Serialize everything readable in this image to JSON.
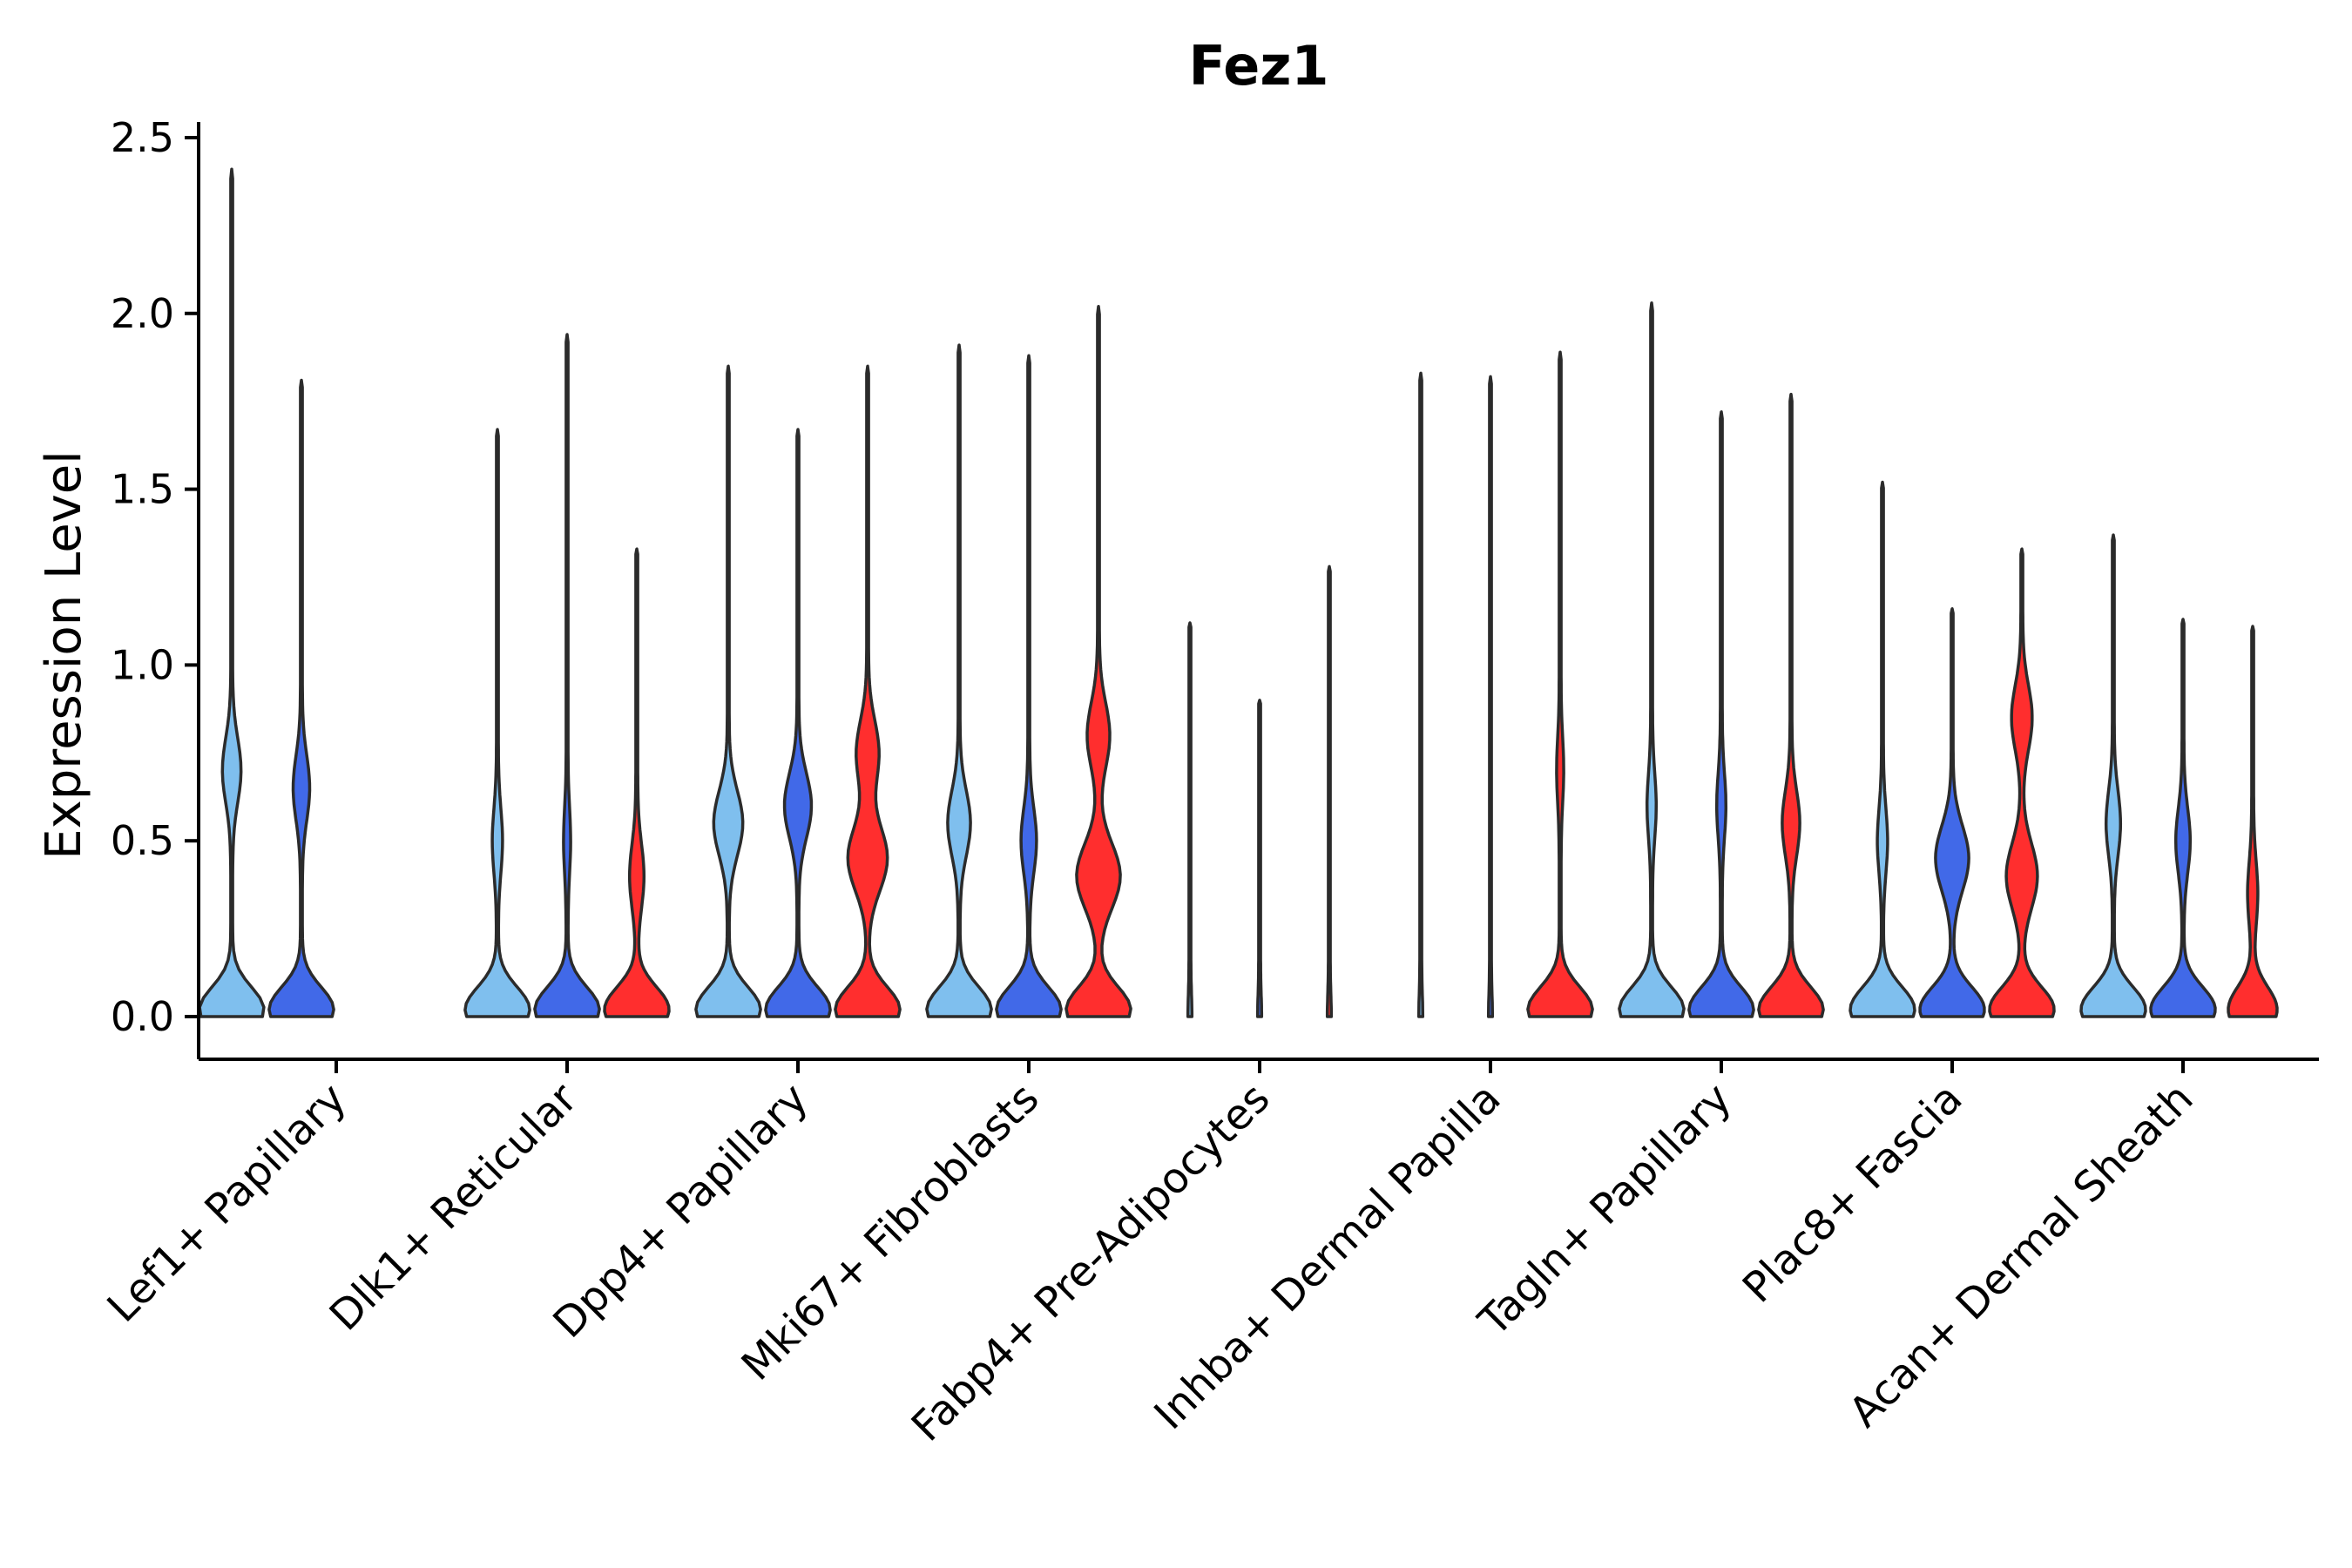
{
  "chart_data": {
    "type": "violin",
    "title": "Fez1",
    "xlabel": "",
    "ylabel": "Expression Level",
    "ylim": [
      0,
      2.5
    ],
    "yticks": [
      0.0,
      0.5,
      1.0,
      1.5,
      2.0,
      2.5
    ],
    "ytick_labels": [
      "0.0",
      "0.5",
      "1.0",
      "1.5",
      "2.0",
      "2.5"
    ],
    "grid": false,
    "legend": "none",
    "series_colors": [
      "#7fbfee",
      "#4169e8",
      "#ff2e2e"
    ],
    "categories": [
      "Lef1+ Papillary",
      "Dlk1+ Reticular",
      "Dpp4+ Papillary",
      "Mki67+ Fibroblasts",
      "Fabp4+ Pre-Adipocytes",
      "Inhba+ Dermal Papilla",
      "Tagln+ Papillary",
      "Plac8+ Fascia",
      "Acan+ Dermal Sheath"
    ],
    "violins": [
      {
        "category": 0,
        "series": 0,
        "max": 2.41,
        "peaks": [
          [
            0.02,
            0.6
          ],
          [
            0.7,
            0.16
          ]
        ]
      },
      {
        "category": 0,
        "series": 1,
        "max": 1.81,
        "peaks": [
          [
            0.02,
            0.6
          ],
          [
            0.65,
            0.14
          ]
        ]
      },
      {
        "category": 1,
        "series": 0,
        "max": 1.67,
        "peaks": [
          [
            0.02,
            0.6
          ],
          [
            0.5,
            0.08
          ]
        ]
      },
      {
        "category": 1,
        "series": 1,
        "max": 1.94,
        "peaks": [
          [
            0.02,
            0.6
          ],
          [
            0.5,
            0.05
          ]
        ]
      },
      {
        "category": 1,
        "series": 2,
        "max": 1.33,
        "peaks": [
          [
            0.02,
            0.6
          ],
          [
            0.4,
            0.12
          ]
        ]
      },
      {
        "category": 2,
        "series": 0,
        "max": 1.85,
        "peaks": [
          [
            0.02,
            0.6
          ],
          [
            0.55,
            0.26
          ]
        ]
      },
      {
        "category": 2,
        "series": 1,
        "max": 1.67,
        "peaks": [
          [
            0.02,
            0.6
          ],
          [
            0.6,
            0.24
          ]
        ]
      },
      {
        "category": 2,
        "series": 2,
        "max": 1.85,
        "peaks": [
          [
            0.02,
            0.6
          ],
          [
            0.45,
            0.36
          ],
          [
            0.75,
            0.2
          ]
        ]
      },
      {
        "category": 3,
        "series": 0,
        "max": 1.91,
        "peaks": [
          [
            0.02,
            0.6
          ],
          [
            0.55,
            0.2
          ]
        ]
      },
      {
        "category": 3,
        "series": 1,
        "max": 1.88,
        "peaks": [
          [
            0.02,
            0.6
          ],
          [
            0.5,
            0.13
          ]
        ]
      },
      {
        "category": 3,
        "series": 2,
        "max": 2.02,
        "peaks": [
          [
            0.02,
            0.6
          ],
          [
            0.4,
            0.4
          ],
          [
            0.8,
            0.2
          ]
        ]
      },
      {
        "category": 4,
        "series": 0,
        "max": 1.12,
        "peaks": [
          [
            0.0,
            0.02
          ]
        ]
      },
      {
        "category": 4,
        "series": 1,
        "max": 0.9,
        "peaks": [
          [
            0.0,
            0.02
          ]
        ]
      },
      {
        "category": 4,
        "series": 2,
        "max": 1.28,
        "peaks": [
          [
            0.0,
            0.02
          ]
        ]
      },
      {
        "category": 5,
        "series": 0,
        "max": 1.83,
        "peaks": [
          [
            0.0,
            0.02
          ]
        ]
      },
      {
        "category": 5,
        "series": 1,
        "max": 1.82,
        "peaks": [
          [
            0.0,
            0.02
          ]
        ]
      },
      {
        "category": 5,
        "series": 2,
        "max": 1.89,
        "peaks": [
          [
            0.02,
            0.6
          ],
          [
            0.7,
            0.05
          ]
        ]
      },
      {
        "category": 6,
        "series": 0,
        "max": 2.03,
        "peaks": [
          [
            0.02,
            0.6
          ],
          [
            0.6,
            0.07
          ]
        ]
      },
      {
        "category": 6,
        "series": 1,
        "max": 1.72,
        "peaks": [
          [
            0.02,
            0.6
          ],
          [
            0.6,
            0.07
          ]
        ]
      },
      {
        "category": 6,
        "series": 2,
        "max": 1.77,
        "peaks": [
          [
            0.02,
            0.6
          ],
          [
            0.55,
            0.15
          ]
        ]
      },
      {
        "category": 7,
        "series": 0,
        "max": 1.52,
        "peaks": [
          [
            0.02,
            0.6
          ],
          [
            0.5,
            0.08
          ]
        ]
      },
      {
        "category": 7,
        "series": 1,
        "max": 1.16,
        "peaks": [
          [
            0.02,
            0.6
          ],
          [
            0.45,
            0.3
          ]
        ]
      },
      {
        "category": 7,
        "series": 2,
        "max": 1.33,
        "peaks": [
          [
            0.02,
            0.6
          ],
          [
            0.4,
            0.28
          ],
          [
            0.85,
            0.18
          ]
        ]
      },
      {
        "category": 8,
        "series": 0,
        "max": 1.37,
        "peaks": [
          [
            0.02,
            0.6
          ],
          [
            0.55,
            0.12
          ]
        ]
      },
      {
        "category": 8,
        "series": 1,
        "max": 1.13,
        "peaks": [
          [
            0.02,
            0.6
          ],
          [
            0.5,
            0.12
          ]
        ]
      },
      {
        "category": 8,
        "series": 2,
        "max": 1.11,
        "peaks": [
          [
            0.02,
            0.45
          ],
          [
            0.35,
            0.08
          ]
        ]
      }
    ]
  }
}
